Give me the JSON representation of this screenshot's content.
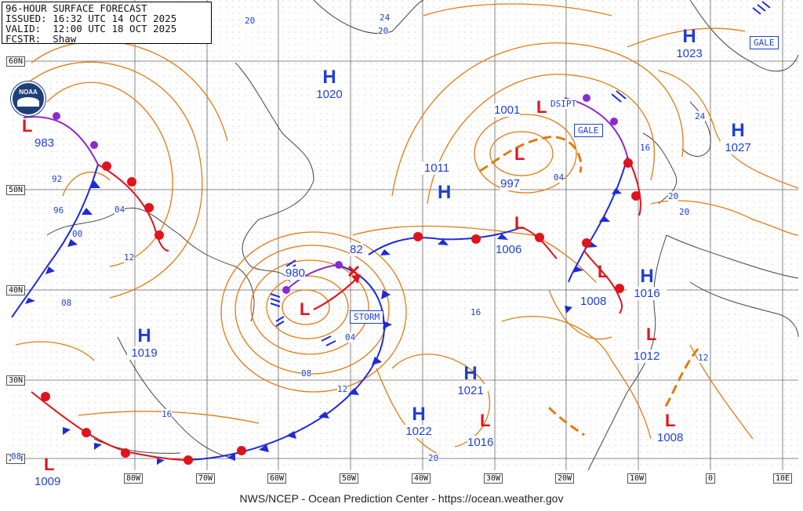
{
  "header": {
    "title": "96-HOUR SURFACE FORECAST",
    "issued": "ISSUED: 16:32 UTC 14 OCT 2025",
    "valid": "VALID:  12:00 UTC 18 OCT 2025",
    "forecaster": "FCSTR:  Shaw"
  },
  "logo": {
    "text": "NOAA"
  },
  "footer": "NWS/NCEP - Ocean Prediction Center - https://ocean.weather.gov",
  "colors": {
    "isobar": "#e07b10",
    "cold": "#1f2bd6",
    "warm": "#e0141c",
    "occluded": "#8a2ad0",
    "high": "#1f3fd0",
    "low": "#e0141c",
    "grid": "#555555",
    "coast": "#333333"
  },
  "lat_labels": [
    "60N",
    "50N",
    "40N",
    "30N",
    "20N"
  ],
  "lon_labels": [
    "80W",
    "70W",
    "60W",
    "50W",
    "40W",
    "30W",
    "20W",
    "10W",
    "0",
    "10E"
  ],
  "highs": [
    {
      "label": "H",
      "pressure": "1020"
    },
    {
      "label": "H",
      "pressure": "1019"
    },
    {
      "label": "H",
      "pressure": "1011"
    },
    {
      "label": "H",
      "pressure": "1021"
    },
    {
      "label": "H",
      "pressure": "1022"
    },
    {
      "label": "H",
      "pressure": "1016"
    },
    {
      "label": "H",
      "pressure": "1023"
    },
    {
      "label": "H",
      "pressure": "1027"
    }
  ],
  "lows": [
    {
      "label": "L",
      "pressure": "983"
    },
    {
      "label": "L",
      "pressure": "980"
    },
    {
      "label": "L",
      "pressure": "1001"
    },
    {
      "label": "L",
      "pressure": "997"
    },
    {
      "label": "L",
      "pressure": "1006"
    },
    {
      "label": "L",
      "pressure": "1008"
    },
    {
      "label": "L",
      "pressure": "1012"
    },
    {
      "label": "L",
      "pressure": "1016"
    },
    {
      "label": "L",
      "pressure": "1008"
    },
    {
      "label": "L",
      "pressure": "1009"
    },
    {
      "label": "L",
      "pressure": "82"
    }
  ],
  "warnings": [
    "STORM",
    "GALE",
    "GALE"
  ],
  "annotations": [
    "DSIPT"
  ],
  "isobar_labels": [
    "20",
    "24",
    "20",
    "92",
    "96",
    "00",
    "04",
    "12",
    "08",
    "08",
    "12",
    "16",
    "04",
    "16",
    "12",
    "04",
    "16",
    "24",
    "20",
    "20",
    "20",
    "08"
  ]
}
